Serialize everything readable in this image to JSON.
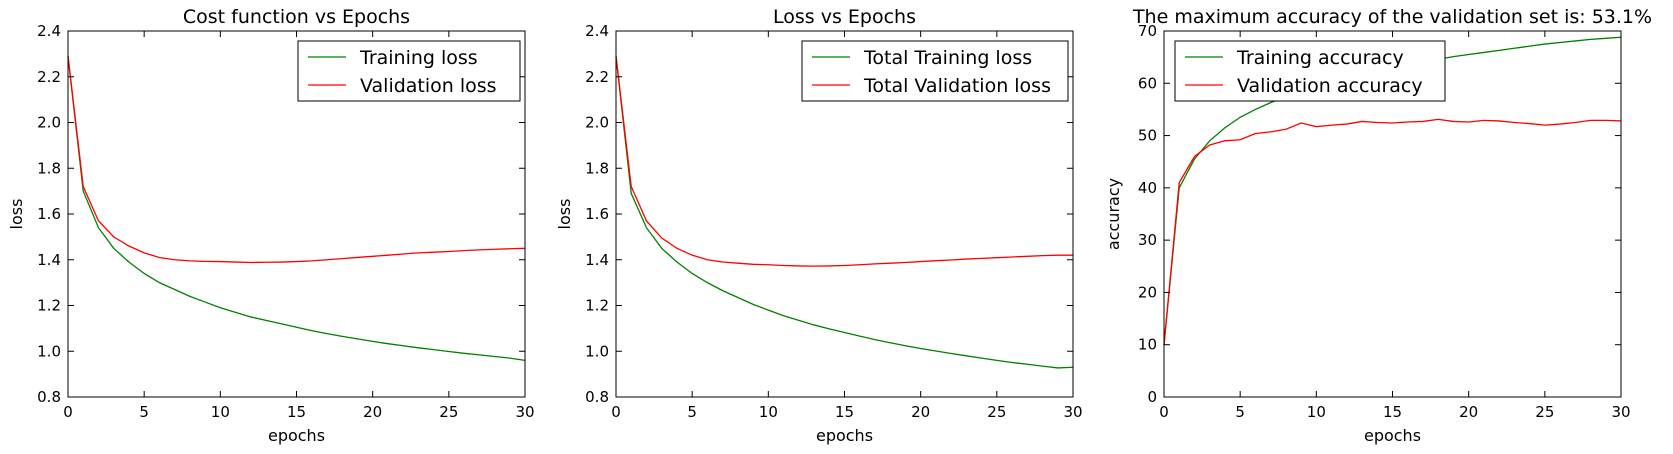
{
  "colors": {
    "training": "#008000",
    "validation": "#ff0000",
    "axes": "#000000",
    "background": "#ffffff"
  },
  "chart_data": [
    {
      "type": "line",
      "title": "Cost function vs Epochs",
      "xlabel": "epochs",
      "ylabel": "loss",
      "xlim": [
        0,
        30
      ],
      "ylim": [
        0.8,
        2.4
      ],
      "xticks": [
        0,
        5,
        10,
        15,
        20,
        25,
        30
      ],
      "yticks": [
        0.8,
        1.0,
        1.2,
        1.4,
        1.6,
        1.8,
        2.0,
        2.2,
        2.4
      ],
      "legend": "upper right",
      "grid": false,
      "x": [
        0,
        1,
        2,
        3,
        4,
        5,
        6,
        7,
        8,
        9,
        10,
        11,
        12,
        13,
        14,
        15,
        16,
        17,
        18,
        19,
        20,
        21,
        22,
        23,
        24,
        25,
        26,
        27,
        28,
        29,
        30
      ],
      "series": [
        {
          "name": "Training loss",
          "color": "#008000",
          "values": [
            2.29,
            1.7,
            1.54,
            1.45,
            1.39,
            1.34,
            1.3,
            1.27,
            1.24,
            1.215,
            1.19,
            1.17,
            1.15,
            1.135,
            1.12,
            1.105,
            1.09,
            1.077,
            1.065,
            1.054,
            1.043,
            1.033,
            1.024,
            1.015,
            1.007,
            0.999,
            0.991,
            0.984,
            0.977,
            0.97,
            0.96
          ]
        },
        {
          "name": "Validation loss",
          "color": "#ff0000",
          "values": [
            2.29,
            1.72,
            1.57,
            1.5,
            1.46,
            1.43,
            1.41,
            1.4,
            1.395,
            1.393,
            1.392,
            1.39,
            1.388,
            1.389,
            1.39,
            1.392,
            1.395,
            1.4,
            1.405,
            1.41,
            1.415,
            1.42,
            1.425,
            1.43,
            1.433,
            1.436,
            1.44,
            1.443,
            1.446,
            1.448,
            1.45
          ]
        }
      ]
    },
    {
      "type": "line",
      "title": "Loss vs Epochs",
      "xlabel": "epochs",
      "ylabel": "loss",
      "xlim": [
        0,
        30
      ],
      "ylim": [
        0.8,
        2.4
      ],
      "xticks": [
        0,
        5,
        10,
        15,
        20,
        25,
        30
      ],
      "yticks": [
        0.8,
        1.0,
        1.2,
        1.4,
        1.6,
        1.8,
        2.0,
        2.2,
        2.4
      ],
      "legend": "upper right",
      "grid": false,
      "x": [
        0,
        1,
        2,
        3,
        4,
        5,
        6,
        7,
        8,
        9,
        10,
        11,
        12,
        13,
        14,
        15,
        16,
        17,
        18,
        19,
        20,
        21,
        22,
        23,
        24,
        25,
        26,
        27,
        28,
        29,
        30
      ],
      "series": [
        {
          "name": "Total Training loss",
          "color": "#008000",
          "values": [
            2.29,
            1.69,
            1.54,
            1.45,
            1.39,
            1.34,
            1.3,
            1.265,
            1.235,
            1.205,
            1.18,
            1.155,
            1.135,
            1.115,
            1.098,
            1.082,
            1.066,
            1.051,
            1.037,
            1.024,
            1.012,
            1.001,
            0.99,
            0.98,
            0.97,
            0.96,
            0.951,
            0.943,
            0.935,
            0.927,
            0.93
          ]
        },
        {
          "name": "Total Validation loss",
          "color": "#ff0000",
          "values": [
            2.29,
            1.72,
            1.57,
            1.495,
            1.45,
            1.42,
            1.4,
            1.39,
            1.385,
            1.38,
            1.378,
            1.375,
            1.373,
            1.372,
            1.373,
            1.375,
            1.378,
            1.382,
            1.385,
            1.388,
            1.392,
            1.396,
            1.399,
            1.403,
            1.406,
            1.409,
            1.412,
            1.415,
            1.418,
            1.42,
            1.42
          ]
        }
      ]
    },
    {
      "type": "line",
      "title": "The maximum accuracy of the validation set is: 53.1%",
      "xlabel": "epochs",
      "ylabel": "accuracy",
      "xlim": [
        0,
        30
      ],
      "ylim": [
        0,
        70
      ],
      "xticks": [
        0,
        5,
        10,
        15,
        20,
        25,
        30
      ],
      "yticks": [
        0,
        10,
        20,
        30,
        40,
        50,
        60,
        70
      ],
      "legend": "upper left",
      "grid": false,
      "x": [
        0,
        1,
        2,
        3,
        4,
        5,
        6,
        7,
        8,
        9,
        10,
        11,
        12,
        13,
        14,
        15,
        16,
        17,
        18,
        19,
        20,
        21,
        22,
        23,
        24,
        25,
        26,
        27,
        28,
        29,
        30
      ],
      "series": [
        {
          "name": "Training accuracy",
          "color": "#008000",
          "values": [
            10.0,
            40.0,
            45.5,
            49.0,
            51.5,
            53.5,
            55.0,
            56.3,
            57.5,
            58.5,
            59.4,
            60.2,
            61.0,
            61.7,
            62.4,
            63.0,
            63.6,
            64.1,
            64.6,
            65.1,
            65.5,
            65.9,
            66.3,
            66.7,
            67.1,
            67.5,
            67.8,
            68.1,
            68.4,
            68.6,
            68.8
          ]
        },
        {
          "name": "Validation accuracy",
          "color": "#ff0000",
          "values": [
            10.0,
            41.0,
            46.0,
            48.2,
            49.0,
            49.2,
            50.4,
            50.7,
            51.2,
            52.4,
            51.7,
            52.0,
            52.2,
            52.7,
            52.5,
            52.4,
            52.6,
            52.7,
            53.1,
            52.7,
            52.6,
            52.9,
            52.8,
            52.5,
            52.3,
            52.0,
            52.2,
            52.5,
            52.9,
            52.9,
            52.8
          ]
        }
      ]
    }
  ]
}
